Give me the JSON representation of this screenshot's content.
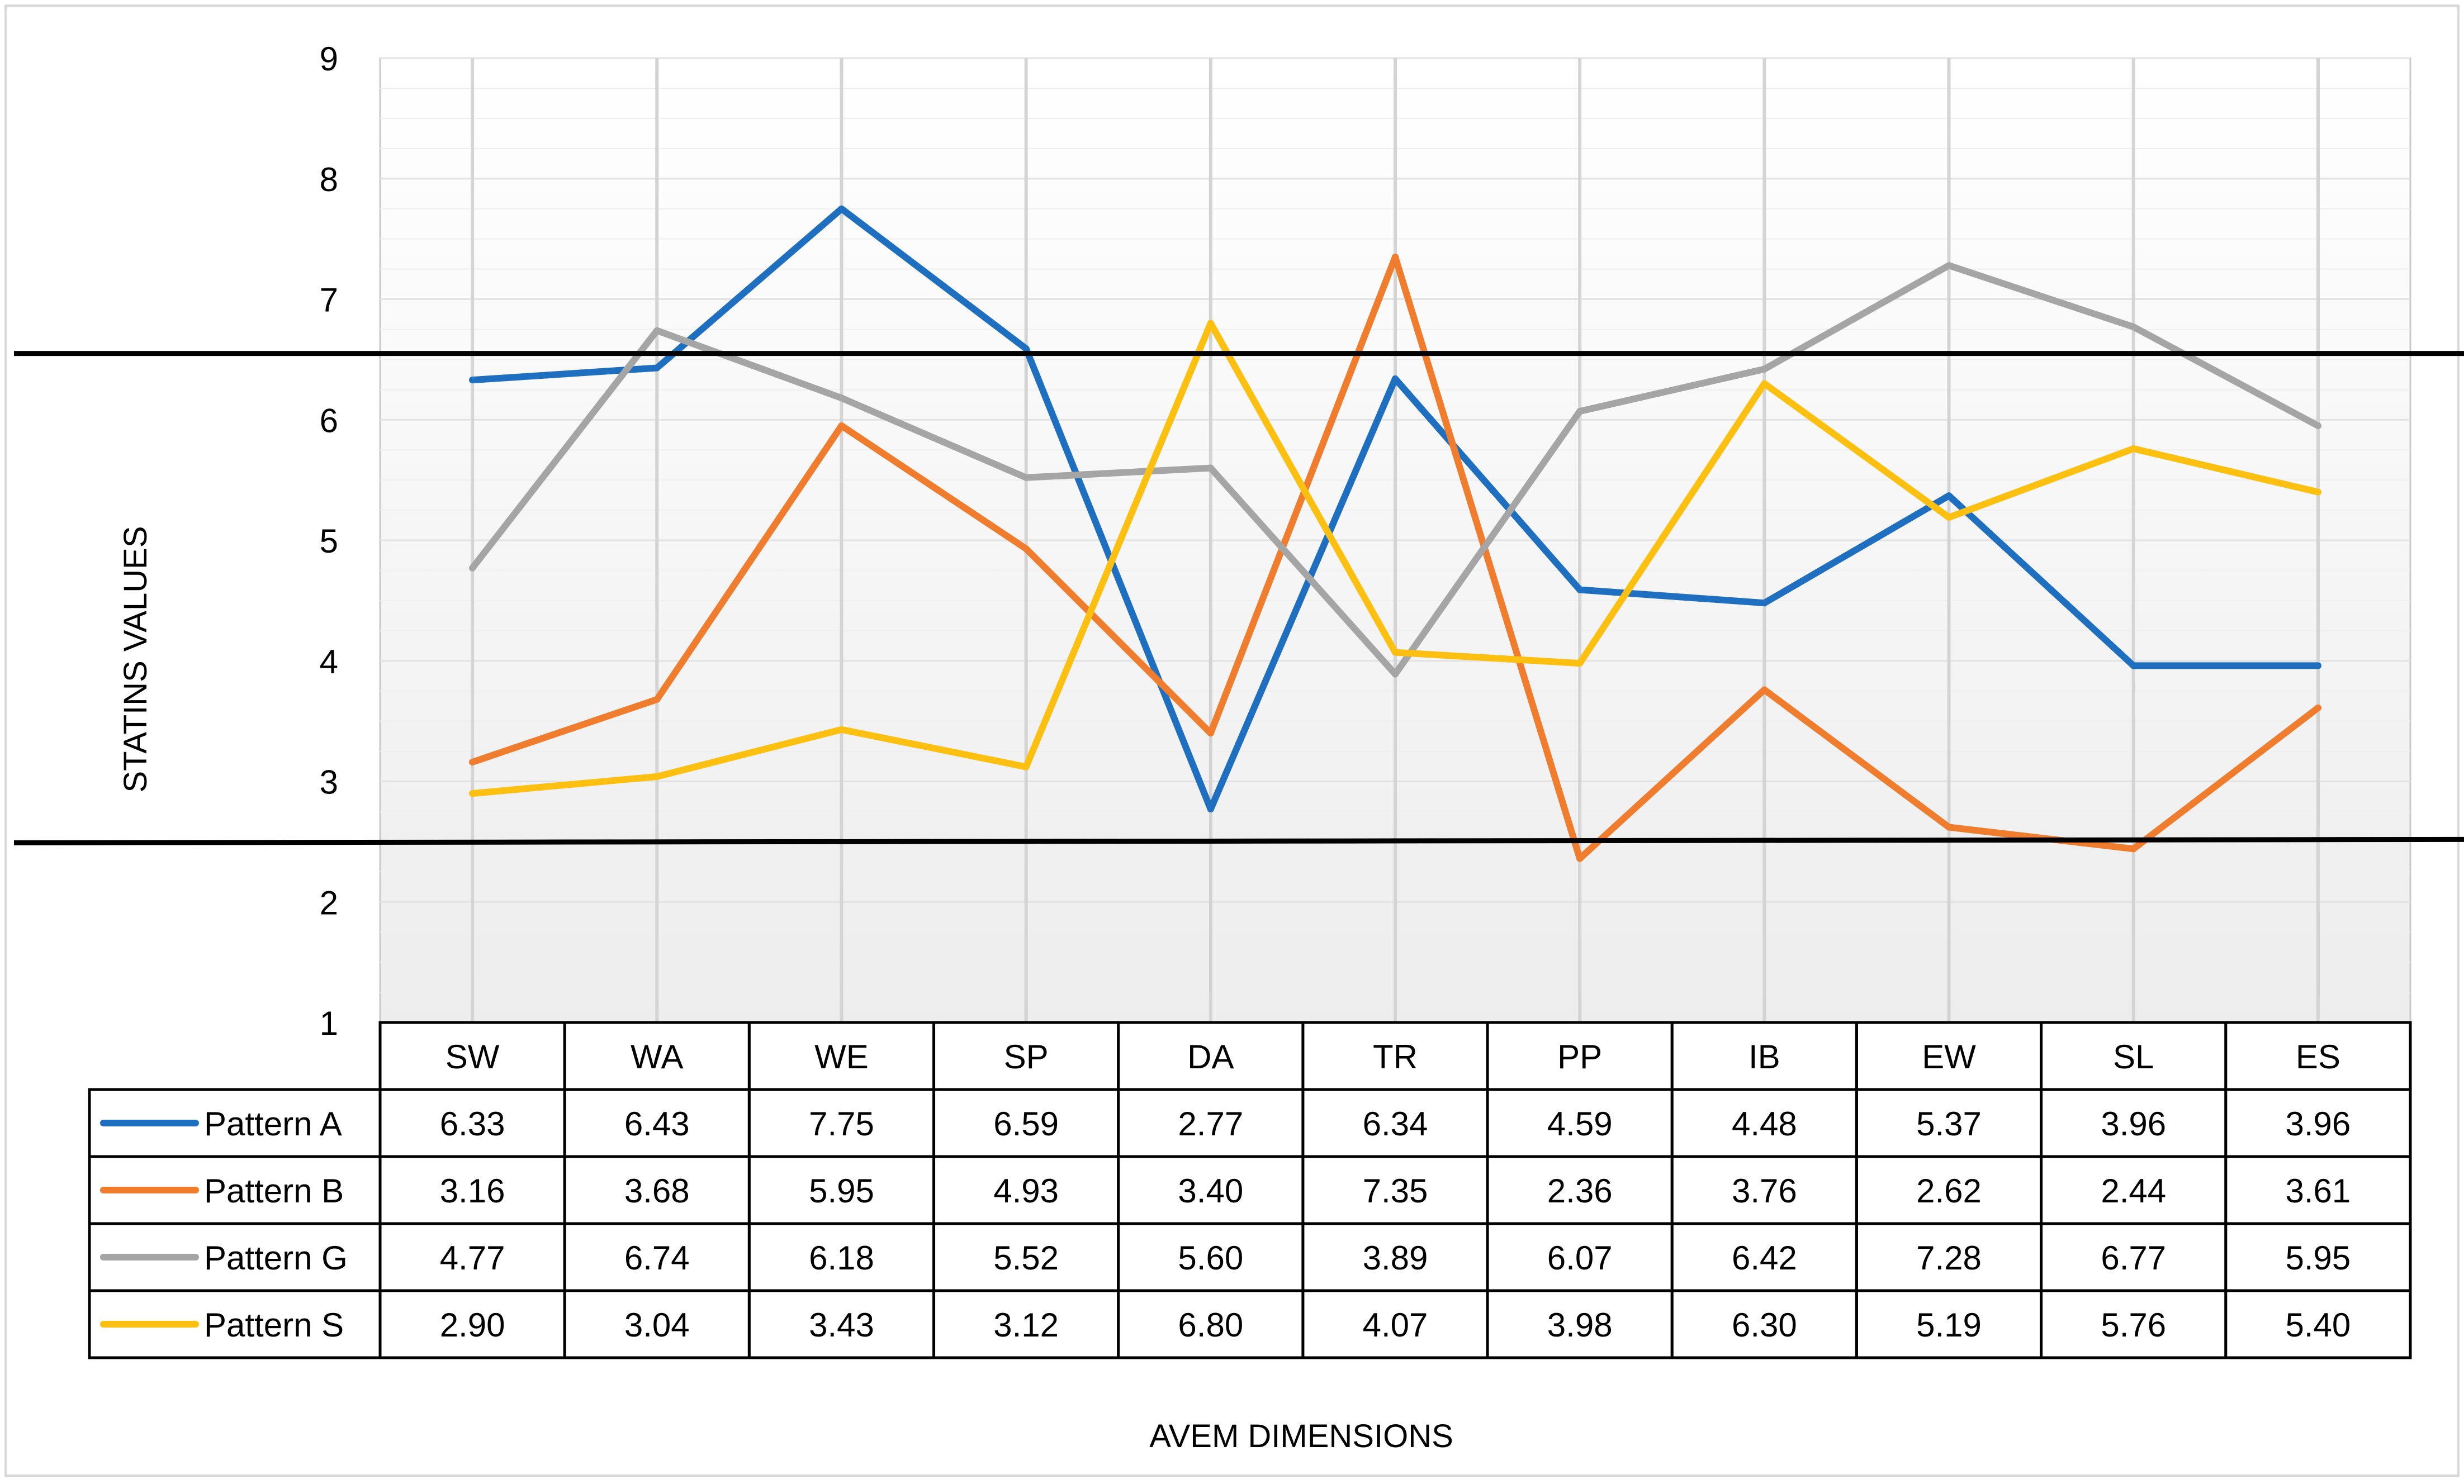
{
  "chart_data": {
    "type": "line",
    "title": "",
    "xlabel": "AVEM DIMENSIONS",
    "ylabel": "STATINS VALUES",
    "ylim": [
      1,
      9
    ],
    "yticks": [
      1,
      2,
      3,
      4,
      5,
      6,
      7,
      8,
      9
    ],
    "grid": "vertical-category-lines",
    "legend": "data-table-below-chart",
    "categories": [
      "SW",
      "WA",
      "WE",
      "SP",
      "DA",
      "TR",
      "PP",
      "IB",
      "EW",
      "SL",
      "ES"
    ],
    "series": [
      {
        "name": "Pattern A",
        "color": "#1f6fc1",
        "values": [
          6.33,
          6.43,
          7.75,
          6.59,
          2.77,
          6.34,
          4.59,
          4.48,
          5.37,
          3.96,
          3.96
        ],
        "labels": [
          "6.33",
          "6.43",
          "7.75",
          "6.59",
          "2.77",
          "6.34",
          "4.59",
          "4.48",
          "5.37",
          "3.96",
          "3.96"
        ]
      },
      {
        "name": "Pattern B",
        "color": "#f07c2e",
        "values": [
          3.16,
          3.68,
          5.95,
          4.93,
          3.4,
          7.35,
          2.36,
          3.76,
          2.62,
          2.44,
          3.61
        ],
        "labels": [
          "3.16",
          "3.68",
          "5.95",
          "4.93",
          "3.40",
          "7.35",
          "2.36",
          "3.76",
          "2.62",
          "2.44",
          "3.61"
        ]
      },
      {
        "name": "Pattern G",
        "color": "#a5a5a5",
        "values": [
          4.77,
          6.74,
          6.18,
          5.52,
          5.6,
          3.89,
          6.07,
          6.42,
          7.28,
          6.77,
          5.95
        ],
        "labels": [
          "4.77",
          "6.74",
          "6.18",
          "5.52",
          "5.60",
          "3.89",
          "6.07",
          "6.42",
          "7.28",
          "6.77",
          "5.95"
        ]
      },
      {
        "name": "Pattern S",
        "color": "#fdc010",
        "values": [
          2.9,
          3.04,
          3.43,
          3.12,
          6.8,
          4.07,
          3.98,
          6.3,
          5.19,
          5.76,
          5.4
        ],
        "labels": [
          "2.90",
          "3.04",
          "3.43",
          "3.12",
          "6.80",
          "4.07",
          "3.98",
          "6.30",
          "5.19",
          "5.76",
          "5.40"
        ]
      }
    ],
    "reference_lines": [
      6.55,
      2.5
    ]
  }
}
